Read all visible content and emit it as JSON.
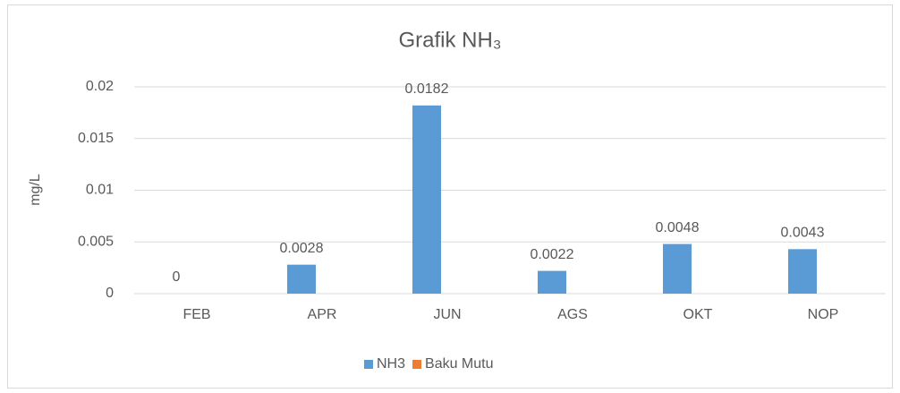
{
  "chart_data": {
    "type": "bar",
    "title": "Grafik NH₃",
    "y_label": "mg/L",
    "categories": [
      "FEB",
      "APR",
      "JUN",
      "AGS",
      "OKT",
      "NOP"
    ],
    "series": [
      {
        "name": "NH3",
        "color": "#5b9bd5",
        "values": [
          0,
          0.0028,
          0.0182,
          0.0022,
          0.0048,
          0.0043
        ]
      },
      {
        "name": "Baku Mutu",
        "color": "#ed7d31",
        "values": [
          null,
          null,
          null,
          null,
          null,
          null
        ]
      }
    ],
    "ylim": [
      0,
      0.02
    ],
    "yticks": [
      0,
      0.005,
      0.01,
      0.015,
      0.02
    ],
    "grid": true,
    "legend": "bottom"
  }
}
